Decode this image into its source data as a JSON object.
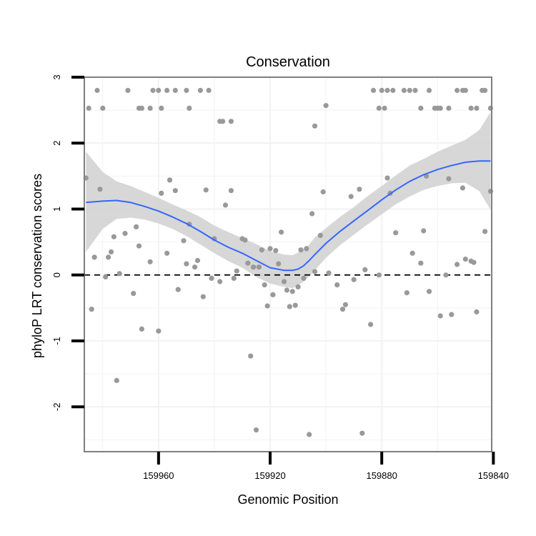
{
  "chart_data": {
    "type": "scatter",
    "title": "Conservation",
    "xlabel": "Genomic Position",
    "ylabel": "phyloP LRT conservation scores",
    "x_reversed": true,
    "xlim": [
      159840.6,
      159986.6
    ],
    "ylim": [
      -2.68,
      3.0
    ],
    "x_ticks": [
      159960,
      159920,
      159880,
      159840
    ],
    "x_tick_labels": [
      "159960",
      "159920",
      "159880",
      "159840"
    ],
    "y_ticks": [
      3,
      2,
      1,
      0,
      -1,
      -2
    ],
    "y_tick_labels": [
      "3",
      "2",
      "1",
      "0",
      "-1",
      "-2"
    ],
    "grid": true,
    "reference_line": {
      "y": 0,
      "style": "dashed"
    },
    "colors": {
      "points": "#999999",
      "smooth_line": "#3366FF",
      "confidence_band": "#D3D3D3",
      "panel_border": "#7F7F7F",
      "grid": "#F2F2F2"
    },
    "series": [
      {
        "type": "points",
        "points": [
          {
            "x": 159985,
            "y": 2.53
          },
          {
            "x": 159982,
            "y": 2.8
          },
          {
            "x": 159980,
            "y": 2.53
          },
          {
            "x": 159971,
            "y": 2.8
          },
          {
            "x": 159967,
            "y": 2.53
          },
          {
            "x": 159966,
            "y": 2.53
          },
          {
            "x": 159963,
            "y": 2.53
          },
          {
            "x": 159962,
            "y": 2.8
          },
          {
            "x": 159960,
            "y": 2.8
          },
          {
            "x": 159959,
            "y": 2.53
          },
          {
            "x": 159957,
            "y": 2.8
          },
          {
            "x": 159954,
            "y": 2.8
          },
          {
            "x": 159950,
            "y": 2.8
          },
          {
            "x": 159949,
            "y": 2.53
          },
          {
            "x": 159945,
            "y": 2.8
          },
          {
            "x": 159942,
            "y": 2.8
          },
          {
            "x": 159938,
            "y": 2.33
          },
          {
            "x": 159937,
            "y": 2.33
          },
          {
            "x": 159934,
            "y": 2.33
          },
          {
            "x": 159904,
            "y": 2.26
          },
          {
            "x": 159900,
            "y": 2.57
          },
          {
            "x": 159883,
            "y": 2.8
          },
          {
            "x": 159881,
            "y": 2.53
          },
          {
            "x": 159880,
            "y": 2.8
          },
          {
            "x": 159879,
            "y": 2.53
          },
          {
            "x": 159878,
            "y": 2.8
          },
          {
            "x": 159876,
            "y": 2.8
          },
          {
            "x": 159872,
            "y": 2.8
          },
          {
            "x": 159870,
            "y": 2.8
          },
          {
            "x": 159868,
            "y": 2.8
          },
          {
            "x": 159866,
            "y": 2.53
          },
          {
            "x": 159863,
            "y": 2.8
          },
          {
            "x": 159861,
            "y": 2.53
          },
          {
            "x": 159860,
            "y": 2.53
          },
          {
            "x": 159859,
            "y": 2.53
          },
          {
            "x": 159856,
            "y": 2.53
          },
          {
            "x": 159853,
            "y": 2.8
          },
          {
            "x": 159851,
            "y": 2.8
          },
          {
            "x": 159850,
            "y": 2.8
          },
          {
            "x": 159848,
            "y": 2.53
          },
          {
            "x": 159846,
            "y": 2.53
          },
          {
            "x": 159844,
            "y": 2.8
          },
          {
            "x": 159843,
            "y": 2.8
          },
          {
            "x": 159841,
            "y": 2.53
          },
          {
            "x": 159986,
            "y": 1.47
          },
          {
            "x": 159984,
            "y": -0.52
          },
          {
            "x": 159983,
            "y": 0.27
          },
          {
            "x": 159981,
            "y": 1.3
          },
          {
            "x": 159979,
            "y": -0.03
          },
          {
            "x": 159978,
            "y": 0.27
          },
          {
            "x": 159977,
            "y": 0.35
          },
          {
            "x": 159976,
            "y": 0.58
          },
          {
            "x": 159975,
            "y": -1.6
          },
          {
            "x": 159974,
            "y": 0.02
          },
          {
            "x": 159972,
            "y": 0.63
          },
          {
            "x": 159969,
            "y": -0.28
          },
          {
            "x": 159968,
            "y": 0.73
          },
          {
            "x": 159967,
            "y": 0.44
          },
          {
            "x": 159966,
            "y": -0.82
          },
          {
            "x": 159963,
            "y": 0.2
          },
          {
            "x": 159960,
            "y": -0.85
          },
          {
            "x": 159959,
            "y": 1.24
          },
          {
            "x": 159957,
            "y": 0.33
          },
          {
            "x": 159956,
            "y": 1.44
          },
          {
            "x": 159954,
            "y": 1.28
          },
          {
            "x": 159953,
            "y": -0.22
          },
          {
            "x": 159951,
            "y": 0.52
          },
          {
            "x": 159950,
            "y": 0.17
          },
          {
            "x": 159949,
            "y": 0.77
          },
          {
            "x": 159947,
            "y": 0.12
          },
          {
            "x": 159946,
            "y": 0.22
          },
          {
            "x": 159944,
            "y": -0.33
          },
          {
            "x": 159943,
            "y": 1.29
          },
          {
            "x": 159941,
            "y": -0.05
          },
          {
            "x": 159940,
            "y": 0.55
          },
          {
            "x": 159938,
            "y": -0.1
          },
          {
            "x": 159936,
            "y": 1.06
          },
          {
            "x": 159934,
            "y": 1.28
          },
          {
            "x": 159933,
            "y": -0.05
          },
          {
            "x": 159932,
            "y": 0.06
          },
          {
            "x": 159930,
            "y": 0.55
          },
          {
            "x": 159929,
            "y": 0.53
          },
          {
            "x": 159928,
            "y": 0.18
          },
          {
            "x": 159927,
            "y": -1.23
          },
          {
            "x": 159926,
            "y": 0.12
          },
          {
            "x": 159925,
            "y": -2.35
          },
          {
            "x": 159924,
            "y": 0.12
          },
          {
            "x": 159923,
            "y": 0.38
          },
          {
            "x": 159922,
            "y": -0.15
          },
          {
            "x": 159921,
            "y": -0.47
          },
          {
            "x": 159920,
            "y": 0.4
          },
          {
            "x": 159919,
            "y": -0.3
          },
          {
            "x": 159918,
            "y": 0.37
          },
          {
            "x": 159917,
            "y": 0.17
          },
          {
            "x": 159916,
            "y": 0.65
          },
          {
            "x": 159915,
            "y": -0.1
          },
          {
            "x": 159914,
            "y": -0.23
          },
          {
            "x": 159913,
            "y": -0.48
          },
          {
            "x": 159912,
            "y": -0.25
          },
          {
            "x": 159911,
            "y": -0.46
          },
          {
            "x": 159910,
            "y": -0.18
          },
          {
            "x": 159909,
            "y": 0.38
          },
          {
            "x": 159908,
            "y": -0.05
          },
          {
            "x": 159907,
            "y": 0.4
          },
          {
            "x": 159906,
            "y": -2.42
          },
          {
            "x": 159905,
            "y": 0.93
          },
          {
            "x": 159904,
            "y": 0.05
          },
          {
            "x": 159902,
            "y": 0.6
          },
          {
            "x": 159901,
            "y": 1.26
          },
          {
            "x": 159899,
            "y": 0.03
          },
          {
            "x": 159896,
            "y": -0.15
          },
          {
            "x": 159894,
            "y": -0.52
          },
          {
            "x": 159893,
            "y": -0.45
          },
          {
            "x": 159891,
            "y": 1.19
          },
          {
            "x": 159890,
            "y": -0.07
          },
          {
            "x": 159888,
            "y": 1.3
          },
          {
            "x": 159887,
            "y": -2.4
          },
          {
            "x": 159886,
            "y": 0.08
          },
          {
            "x": 159884,
            "y": -0.75
          },
          {
            "x": 159881,
            "y": 0.0
          },
          {
            "x": 159878,
            "y": 1.47
          },
          {
            "x": 159877,
            "y": 1.24
          },
          {
            "x": 159875,
            "y": 0.64
          },
          {
            "x": 159871,
            "y": -0.27
          },
          {
            "x": 159869,
            "y": 0.33
          },
          {
            "x": 159866,
            "y": 0.18
          },
          {
            "x": 159865,
            "y": 0.67
          },
          {
            "x": 159864,
            "y": 1.5
          },
          {
            "x": 159863,
            "y": -0.25
          },
          {
            "x": 159859,
            "y": -0.62
          },
          {
            "x": 159857,
            "y": 0.0
          },
          {
            "x": 159856,
            "y": 1.46
          },
          {
            "x": 159855,
            "y": -0.6
          },
          {
            "x": 159853,
            "y": 0.16
          },
          {
            "x": 159851,
            "y": 1.32
          },
          {
            "x": 159850,
            "y": 0.24
          },
          {
            "x": 159848,
            "y": 0.21
          },
          {
            "x": 159847,
            "y": 0.19
          },
          {
            "x": 159846,
            "y": -0.56
          },
          {
            "x": 159843,
            "y": 0.66
          },
          {
            "x": 159841,
            "y": 1.27
          }
        ]
      },
      {
        "type": "smooth",
        "x": [
          159986,
          159980,
          159975,
          159970,
          159965,
          159960,
          159955,
          159950,
          159945,
          159940,
          159935,
          159930,
          159925,
          159920,
          159915,
          159912,
          159910,
          159908,
          159906,
          159904,
          159900,
          159895,
          159890,
          159885,
          159880,
          159875,
          159870,
          159865,
          159860,
          159855,
          159850,
          159845,
          159841
        ],
        "y": [
          1.1,
          1.12,
          1.13,
          1.1,
          1.04,
          0.97,
          0.88,
          0.78,
          0.66,
          0.53,
          0.42,
          0.33,
          0.22,
          0.11,
          0.07,
          0.07,
          0.09,
          0.14,
          0.22,
          0.31,
          0.48,
          0.66,
          0.82,
          0.98,
          1.14,
          1.29,
          1.42,
          1.52,
          1.6,
          1.66,
          1.71,
          1.73,
          1.73
        ],
        "lower": [
          0.35,
          0.7,
          0.85,
          0.87,
          0.84,
          0.78,
          0.7,
          0.59,
          0.46,
          0.33,
          0.21,
          0.11,
          -0.03,
          -0.13,
          -0.18,
          -0.2,
          -0.16,
          -0.1,
          -0.02,
          0.07,
          0.26,
          0.45,
          0.61,
          0.77,
          0.92,
          1.07,
          1.19,
          1.29,
          1.35,
          1.39,
          1.4,
          1.27,
          0.99
        ],
        "upper": [
          1.87,
          1.56,
          1.42,
          1.35,
          1.26,
          1.17,
          1.07,
          0.98,
          0.88,
          0.75,
          0.65,
          0.56,
          0.47,
          0.36,
          0.31,
          0.3,
          0.34,
          0.39,
          0.46,
          0.57,
          0.71,
          0.88,
          1.03,
          1.2,
          1.35,
          1.51,
          1.66,
          1.76,
          1.87,
          1.96,
          2.05,
          2.2,
          2.47
        ]
      }
    ]
  }
}
